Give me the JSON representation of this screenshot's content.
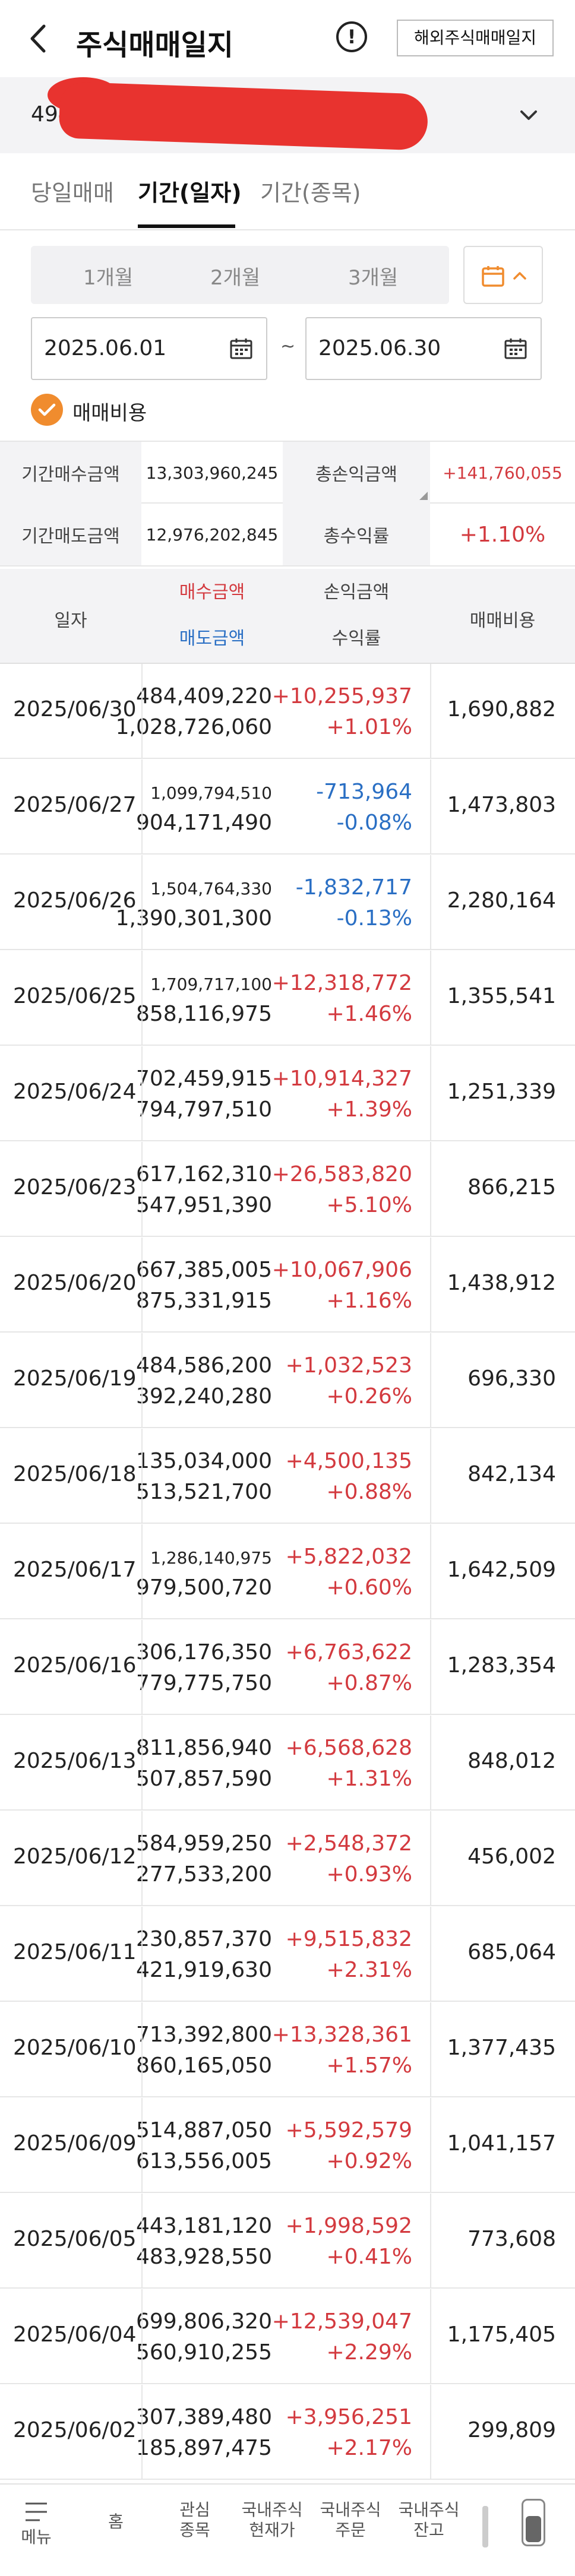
{
  "header": {
    "title": "주식매매일지",
    "info_glyph": "!",
    "overseas_button": "해외주식매매일지"
  },
  "account": {
    "visible_prefix": "494-"
  },
  "tabs": [
    {
      "label": "당일매매",
      "active": false
    },
    {
      "label": "기간(일자)",
      "active": true
    },
    {
      "label": "기간(종목)",
      "active": false
    }
  ],
  "period_options": [
    "1개월",
    "2개월",
    "3개월"
  ],
  "date_range": {
    "start": "2025.06.01",
    "separator": "~",
    "end": "2025.06.30"
  },
  "fee_checkbox": {
    "label": "매매비용",
    "checked": true
  },
  "summary": {
    "buy_total_label": "기간매수금액",
    "buy_total_value": "13,303,960,245",
    "pl_total_label": "총손익금액",
    "pl_total_value": "+141,760,055",
    "sell_total_label": "기간매도금액",
    "sell_total_value": "12,976,202,845",
    "return_label": "총수익률",
    "return_value": "+1.10%"
  },
  "columns": {
    "date": "일자",
    "buy": "매수금액",
    "sell": "매도금액",
    "pl": "손익금액",
    "rate": "수익률",
    "fee": "매매비용"
  },
  "rows": [
    {
      "date": "2025/06/30",
      "buy": "484,409,220",
      "sell": "1,028,726,060",
      "pl": "+10,255,937",
      "rate": "+1.01%",
      "fee": "1,690,882",
      "sign": "pos"
    },
    {
      "date": "2025/06/27",
      "buy": "1,099,794,510",
      "sell": "904,171,490",
      "pl": "-713,964",
      "rate": "-0.08%",
      "fee": "1,473,803",
      "sign": "neg"
    },
    {
      "date": "2025/06/26",
      "buy": "1,504,764,330",
      "sell": "1,390,301,300",
      "pl": "-1,832,717",
      "rate": "-0.13%",
      "fee": "2,280,164",
      "sign": "neg"
    },
    {
      "date": "2025/06/25",
      "buy": "1,709,717,100",
      "sell": "858,116,975",
      "pl": "+12,318,772",
      "rate": "+1.46%",
      "fee": "1,355,541",
      "sign": "pos"
    },
    {
      "date": "2025/06/24",
      "buy": "702,459,915",
      "sell": "794,797,510",
      "pl": "+10,914,327",
      "rate": "+1.39%",
      "fee": "1,251,339",
      "sign": "pos"
    },
    {
      "date": "2025/06/23",
      "buy": "617,162,310",
      "sell": "547,951,390",
      "pl": "+26,583,820",
      "rate": "+5.10%",
      "fee": "866,215",
      "sign": "pos"
    },
    {
      "date": "2025/06/20",
      "buy": "667,385,005",
      "sell": "875,331,915",
      "pl": "+10,067,906",
      "rate": "+1.16%",
      "fee": "1,438,912",
      "sign": "pos"
    },
    {
      "date": "2025/06/19",
      "buy": "484,586,200",
      "sell": "392,240,280",
      "pl": "+1,032,523",
      "rate": "+0.26%",
      "fee": "696,330",
      "sign": "pos"
    },
    {
      "date": "2025/06/18",
      "buy": "135,034,000",
      "sell": "513,521,700",
      "pl": "+4,500,135",
      "rate": "+0.88%",
      "fee": "842,134",
      "sign": "pos"
    },
    {
      "date": "2025/06/17",
      "buy": "1,286,140,975",
      "sell": "979,500,720",
      "pl": "+5,822,032",
      "rate": "+0.60%",
      "fee": "1,642,509",
      "sign": "pos"
    },
    {
      "date": "2025/06/16",
      "buy": "306,176,350",
      "sell": "779,775,750",
      "pl": "+6,763,622",
      "rate": "+0.87%",
      "fee": "1,283,354",
      "sign": "pos"
    },
    {
      "date": "2025/06/13",
      "buy": "811,856,940",
      "sell": "507,857,590",
      "pl": "+6,568,628",
      "rate": "+1.31%",
      "fee": "848,012",
      "sign": "pos"
    },
    {
      "date": "2025/06/12",
      "buy": "584,959,250",
      "sell": "277,533,200",
      "pl": "+2,548,372",
      "rate": "+0.93%",
      "fee": "456,002",
      "sign": "pos"
    },
    {
      "date": "2025/06/11",
      "buy": "230,857,370",
      "sell": "421,919,630",
      "pl": "+9,515,832",
      "rate": "+2.31%",
      "fee": "685,064",
      "sign": "pos"
    },
    {
      "date": "2025/06/10",
      "buy": "713,392,800",
      "sell": "860,165,050",
      "pl": "+13,328,361",
      "rate": "+1.57%",
      "fee": "1,377,435",
      "sign": "pos"
    },
    {
      "date": "2025/06/09",
      "buy": "514,887,050",
      "sell": "613,556,005",
      "pl": "+5,592,579",
      "rate": "+0.92%",
      "fee": "1,041,157",
      "sign": "pos"
    },
    {
      "date": "2025/06/05",
      "buy": "443,181,120",
      "sell": "483,928,550",
      "pl": "+1,998,592",
      "rate": "+0.41%",
      "fee": "773,608",
      "sign": "pos"
    },
    {
      "date": "2025/06/04",
      "buy": "699,806,320",
      "sell": "560,910,255",
      "pl": "+12,539,047",
      "rate": "+2.29%",
      "fee": "1,175,405",
      "sign": "pos"
    },
    {
      "date": "2025/06/02",
      "buy": "307,389,480",
      "sell": "185,897,475",
      "pl": "+3,956,251",
      "rate": "+2.17%",
      "fee": "299,809",
      "sign": "pos"
    }
  ],
  "bottom_nav": [
    {
      "label": "메뉴",
      "icon": "menu-icon"
    },
    {
      "label": "홈",
      "icon": ""
    },
    {
      "label": "관심\n종목",
      "icon": ""
    },
    {
      "label": "국내주식\n현재가",
      "icon": ""
    },
    {
      "label": "국내주식\n주문",
      "icon": ""
    },
    {
      "label": "국내주식\n잔고",
      "icon": ""
    },
    {
      "label": "",
      "icon": "scroll-handle-icon"
    }
  ],
  "colors": {
    "positive": "#d33a3f",
    "negative": "#2a6fc4",
    "accent": "#f08c2e"
  }
}
